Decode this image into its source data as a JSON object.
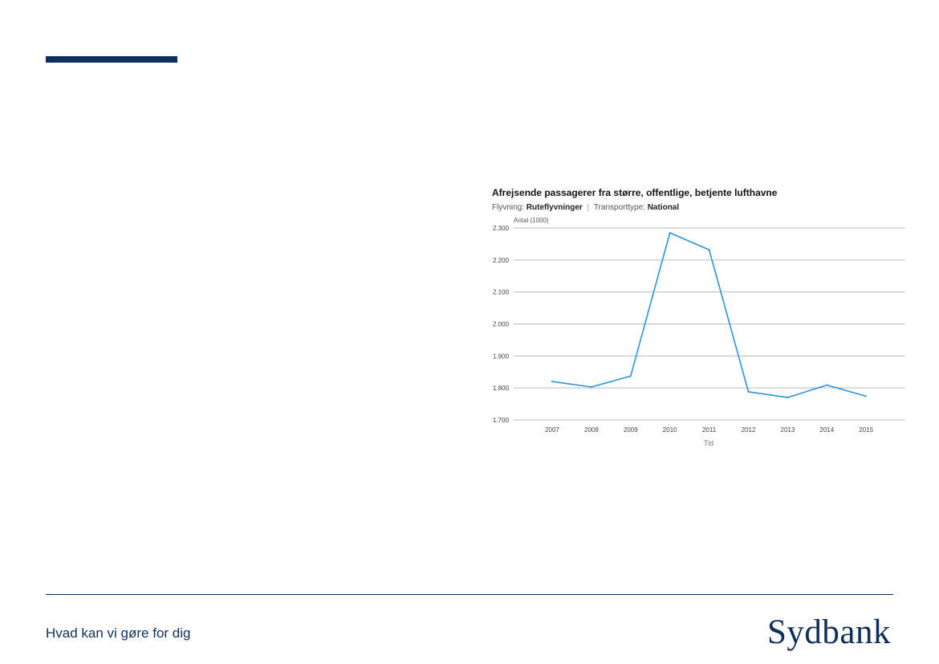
{
  "footer": {
    "tagline": "Hvad kan vi gøre for dig",
    "logo_text": "Sydbank"
  },
  "colors": {
    "brand": "#0e2f5e",
    "line": "#2b95d6",
    "grid": "#bbbbbb"
  },
  "chart_data": {
    "type": "line",
    "title": "Afrejsende passagerer fra større, offentlige, betjente lufthavne",
    "subtitle": {
      "filter1_label": "Flyvning:",
      "filter1_value": "Ruteflyvninger",
      "separator": "|",
      "filter2_label": "Transporttype:",
      "filter2_value": "National"
    },
    "ylabel": "Antal (1000)",
    "xlabel": "Tid",
    "ylim": [
      1700,
      2300
    ],
    "yticks": [
      1700,
      1800,
      1900,
      2000,
      2100,
      2200,
      2300
    ],
    "ytick_labels": [
      "1.700",
      "1.800",
      "1.900",
      "2.000",
      "2.100",
      "2.200",
      "2.300"
    ],
    "categories": [
      "2007",
      "2008",
      "2009",
      "2010",
      "2011",
      "2012",
      "2013",
      "2014",
      "2015"
    ],
    "series": [
      {
        "values": [
          1820,
          1803,
          1837,
          2285,
          2232,
          1788,
          1770,
          1809,
          1774
        ]
      }
    ],
    "grid": true
  }
}
